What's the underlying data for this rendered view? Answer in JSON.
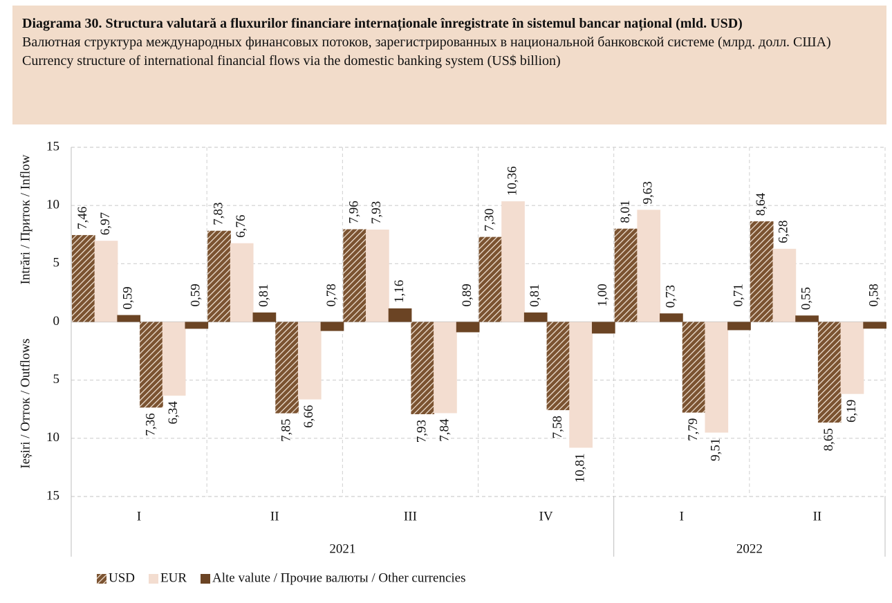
{
  "chart_data": {
    "type": "bar",
    "title": "Diagrama 30. Structura valutară a fluxurilor financiare internaționale înregistrate în sistemul bancar național (mld. USD)",
    "subtitle_ru": "Валютная структура международных финансовых потоков, зарегистрированных в национальной банковской системе (млрд. долл. США)",
    "subtitle_en": "Currency structure of international financial flows via the domestic banking system (US$ billion)",
    "ylabel_inflow": "Intrări / Приток / Inflow",
    "ylabel_outflow": "Ieșiri / Отток / Outflows",
    "categories": [
      "I",
      "II",
      "III",
      "IV",
      "I",
      "II"
    ],
    "years": [
      {
        "label": "2021",
        "span": 4
      },
      {
        "label": "2022",
        "span": 2
      }
    ],
    "series": [
      {
        "name": "USD",
        "color": "#7b5331",
        "pattern": "hatch",
        "values": [
          7.46,
          7.83,
          7.96,
          7.3,
          8.01,
          8.64
        ],
        "value_labels": [
          "7,46",
          "7,83",
          "7,96",
          "7,30",
          "8,01",
          "8,64"
        ],
        "outflows": [
          -7.36,
          -7.85,
          -7.93,
          -7.58,
          -7.79,
          -8.65
        ],
        "outflow_labels": [
          "7,36",
          "7,85",
          "7,93",
          "7,58",
          "7,79",
          "8,65"
        ]
      },
      {
        "name": "EUR",
        "color": "#f3ddd0",
        "values": [
          6.97,
          6.76,
          7.93,
          10.36,
          9.63,
          6.28
        ],
        "value_labels": [
          "6,97",
          "6,76",
          "7,93",
          "10,36",
          "9,63",
          "6,28"
        ],
        "outflows": [
          -6.34,
          -6.66,
          -7.84,
          -10.81,
          -9.51,
          -6.19
        ],
        "outflow_labels": [
          "6,34",
          "6,66",
          "7,84",
          "10,81",
          "9,51",
          "6,19"
        ]
      },
      {
        "name": "Alte valute / Прочие валюты / Other currencies",
        "color": "#6b4424",
        "values": [
          0.59,
          0.81,
          1.16,
          0.81,
          0.73,
          0.55
        ],
        "value_labels": [
          "0,59",
          "0,81",
          "1,16",
          "0,81",
          "0,73",
          "0,55"
        ],
        "outflows": [
          -0.59,
          -0.78,
          -0.89,
          -1.0,
          -0.71,
          -0.58
        ],
        "outflow_labels": [
          "0,59",
          "0,78",
          "0,89",
          "1,00",
          "0,71",
          "0,58"
        ]
      }
    ],
    "ylim": [
      -15,
      15
    ],
    "yticks": [
      {
        "value": -15,
        "label": "15"
      },
      {
        "value": -10,
        "label": "10"
      },
      {
        "value": -5,
        "label": "5"
      },
      0,
      5,
      10,
      15
    ],
    "grid": true,
    "legend": "bottom-left"
  }
}
